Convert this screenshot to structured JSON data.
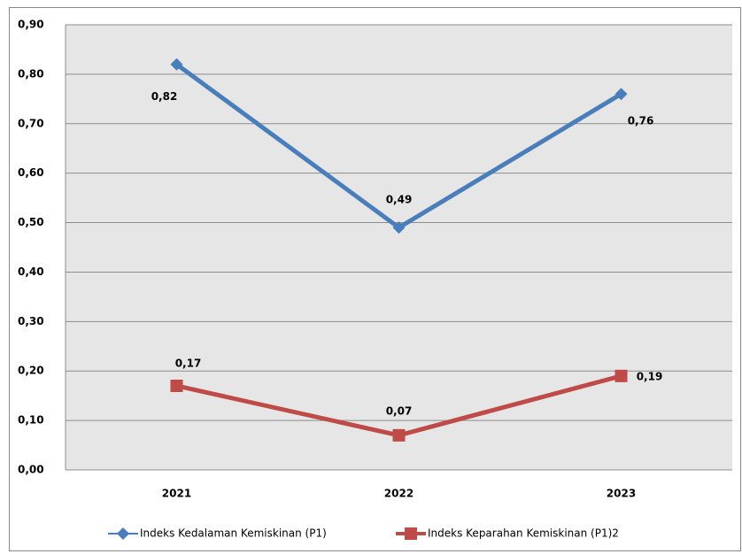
{
  "chart_data": {
    "type": "line",
    "categories": [
      "2021",
      "2022",
      "2023"
    ],
    "series": [
      {
        "name": "Indeks Kedalaman Kemiskinan (P1)",
        "color": "#4a7ebb",
        "marker": "diamond",
        "values": [
          0.82,
          0.49,
          0.76
        ],
        "value_labels": [
          "0,82",
          "0,49",
          "0,76"
        ]
      },
      {
        "name": "Indeks Keparahan Kemiskinan (P1)2",
        "color": "#be4b48",
        "marker": "square",
        "values": [
          0.17,
          0.07,
          0.19
        ],
        "value_labels": [
          "0,17",
          "0,07",
          "0,19"
        ]
      }
    ],
    "ylim": [
      0,
      0.9
    ],
    "yticks": [
      {
        "value": 0,
        "label": "0,00"
      },
      {
        "value": 0.1,
        "label": "0,10"
      },
      {
        "value": 0.2,
        "label": "0,20"
      },
      {
        "value": 0.3,
        "label": "0,30"
      },
      {
        "value": 0.4,
        "label": "0,40"
      },
      {
        "value": 0.5,
        "label": "0,50"
      },
      {
        "value": 0.6,
        "label": "0,60"
      },
      {
        "value": 0.7,
        "label": "0,70"
      },
      {
        "value": 0.8,
        "label": "0,80"
      },
      {
        "value": 0.9,
        "label": "0,90"
      }
    ],
    "grid": true,
    "legend": "bottom"
  }
}
